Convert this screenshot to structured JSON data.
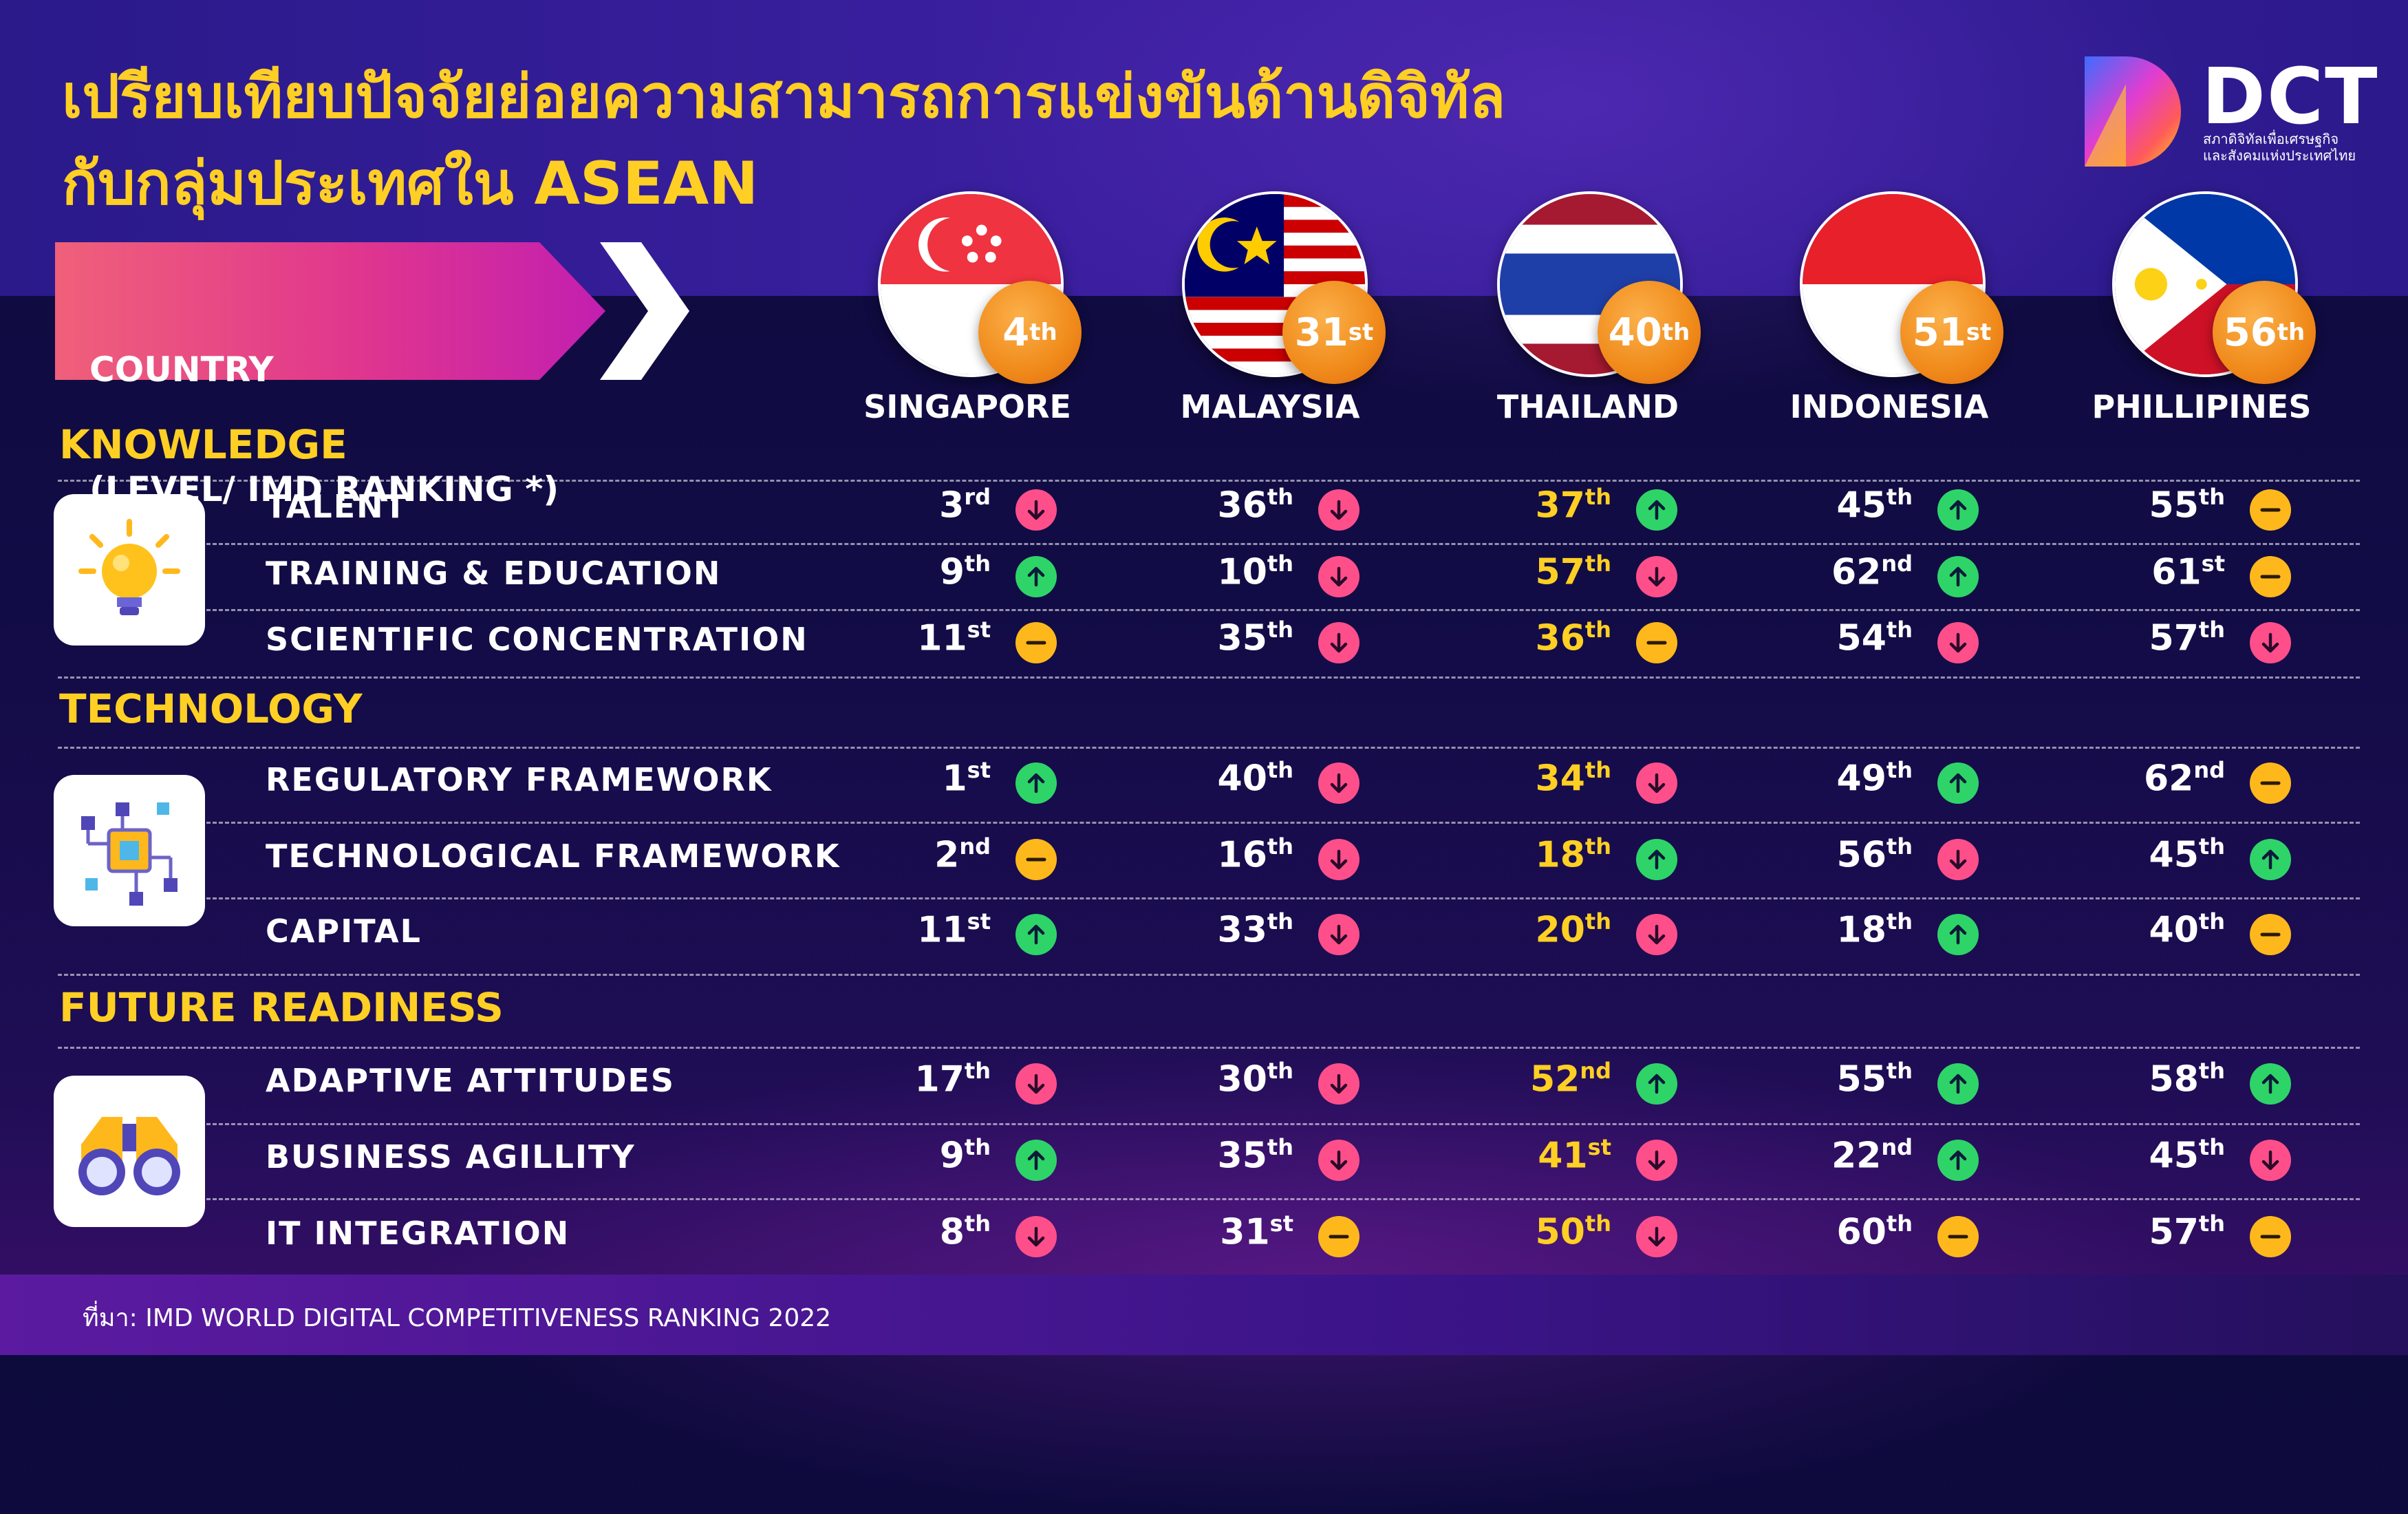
{
  "title": {
    "line1": "เปรียบเทียบปัจจัยย่อยความสามารถการแข่งขันด้านดิจิทัล",
    "line2": "กับกลุ่มประเทศใน ASEAN"
  },
  "logo": {
    "text": "DCT",
    "sub1": "สภาดิจิทัลเพื่อเศรษฐกิจ",
    "sub2": "และสังคมแห่งประเทศไทย"
  },
  "country_header": {
    "line1": "COUNTRY",
    "line2": "(LEVEL/ IMD RANKING *)"
  },
  "countries": [
    {
      "name": "SINGAPORE",
      "rank": "4",
      "suffix": "th"
    },
    {
      "name": "MALAYSIA",
      "rank": "31",
      "suffix": "st"
    },
    {
      "name": "THAILAND",
      "rank": "40",
      "suffix": "th"
    },
    {
      "name": "INDONESIA",
      "rank": "51",
      "suffix": "st"
    },
    {
      "name": "PHILLIPINES",
      "rank": "56",
      "suffix": "th"
    }
  ],
  "sections": [
    {
      "title": "KNOWLEDGE",
      "icon": "lightbulb-icon",
      "rows": [
        {
          "label": "TALENT",
          "cells": [
            [
              "3",
              "rd",
              "down"
            ],
            [
              "36",
              "th",
              "down"
            ],
            [
              "37",
              "th",
              "up"
            ],
            [
              "45",
              "th",
              "up"
            ],
            [
              "55",
              "th",
              "same"
            ]
          ]
        },
        {
          "label": "TRAINING & EDUCATION",
          "cells": [
            [
              "9",
              "th",
              "up"
            ],
            [
              "10",
              "th",
              "down"
            ],
            [
              "57",
              "th",
              "down"
            ],
            [
              "62",
              "nd",
              "up"
            ],
            [
              "61",
              "st",
              "same"
            ]
          ]
        },
        {
          "label": "SCIENTIFIC CONCENTRATION",
          "cells": [
            [
              "11",
              "st",
              "same"
            ],
            [
              "35",
              "th",
              "down"
            ],
            [
              "36",
              "th",
              "same"
            ],
            [
              "54",
              "th",
              "down"
            ],
            [
              "57",
              "th",
              "down"
            ]
          ]
        }
      ]
    },
    {
      "title": "TECHNOLOGY",
      "icon": "circuit-icon",
      "rows": [
        {
          "label": "REGULATORY FRAMEWORK",
          "cells": [
            [
              "1",
              "st",
              "up"
            ],
            [
              "40",
              "th",
              "down"
            ],
            [
              "34",
              "th",
              "down"
            ],
            [
              "49",
              "th",
              "up"
            ],
            [
              "62",
              "nd",
              "same"
            ]
          ]
        },
        {
          "label": "TECHNOLOGICAL FRAMEWORK",
          "cells": [
            [
              "2",
              "nd",
              "same"
            ],
            [
              "16",
              "th",
              "down"
            ],
            [
              "18",
              "th",
              "up"
            ],
            [
              "56",
              "th",
              "down"
            ],
            [
              "45",
              "th",
              "up"
            ]
          ]
        },
        {
          "label": "CAPITAL",
          "cells": [
            [
              "11",
              "st",
              "up"
            ],
            [
              "33",
              "th",
              "down"
            ],
            [
              "20",
              "th",
              "down"
            ],
            [
              "18",
              "th",
              "up"
            ],
            [
              "40",
              "th",
              "same"
            ]
          ]
        }
      ]
    },
    {
      "title": "FUTURE READINESS",
      "icon": "binoculars-icon",
      "rows": [
        {
          "label": "ADAPTIVE ATTITUDES",
          "cells": [
            [
              "17",
              "th",
              "down"
            ],
            [
              "30",
              "th",
              "down"
            ],
            [
              "52",
              "nd",
              "up"
            ],
            [
              "55",
              "th",
              "up"
            ],
            [
              "58",
              "th",
              "up"
            ]
          ]
        },
        {
          "label": "BUSINESS AGILLITY",
          "cells": [
            [
              "9",
              "th",
              "up"
            ],
            [
              "35",
              "th",
              "down"
            ],
            [
              "41",
              "st",
              "down"
            ],
            [
              "22",
              "nd",
              "up"
            ],
            [
              "45",
              "th",
              "down"
            ]
          ]
        },
        {
          "label": "IT INTEGRATION",
          "cells": [
            [
              "8",
              "th",
              "down"
            ],
            [
              "31",
              "st",
              "same"
            ],
            [
              "50",
              "th",
              "down"
            ],
            [
              "60",
              "th",
              "same"
            ],
            [
              "57",
              "th",
              "same"
            ]
          ]
        }
      ]
    }
  ],
  "colors": {
    "title": "#ffcf24",
    "up": "#2ed468",
    "down": "#ff4f8b",
    "same": "#ffb81c",
    "badge": "#f08a1a"
  },
  "footer": "ที่มา: IMD WORLD DIGITAL COMPETITIVENESS RANKING 2022"
}
